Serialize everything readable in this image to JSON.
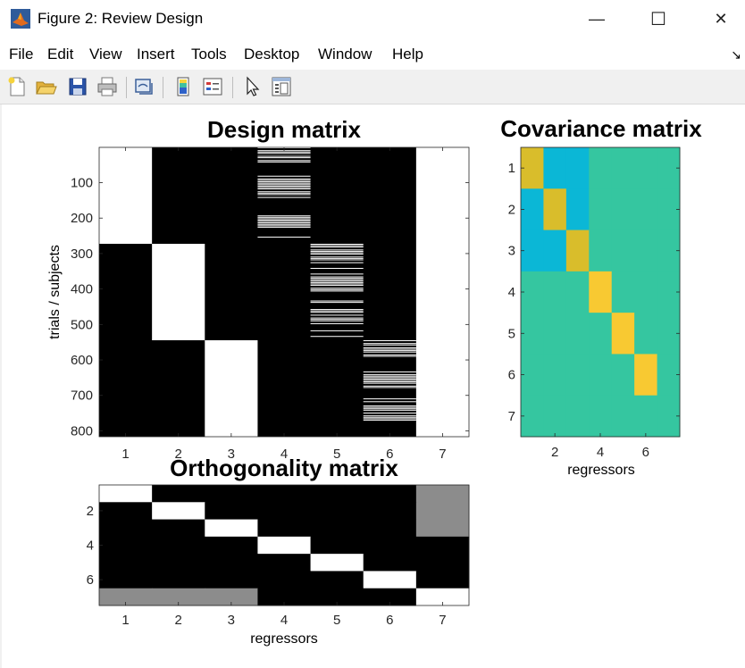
{
  "window": {
    "title": "Figure 2: Review Design",
    "minimize_symbol": "—",
    "maximize_symbol": "☐",
    "close_symbol": "✕",
    "app_icon": "matlab-logo-icon"
  },
  "menu": {
    "items": [
      "File",
      "Edit",
      "View",
      "Insert",
      "Tools",
      "Desktop",
      "Window",
      "Help"
    ],
    "overflow_symbol": "↘"
  },
  "toolbar": {
    "tools": [
      "new-figure-icon",
      "open-file-icon",
      "save-icon",
      "print-icon",
      "link-plot-icon",
      "insert-colorbar-icon",
      "insert-legend-icon",
      "edit-plot-arrow-icon",
      "property-inspector-icon"
    ]
  },
  "colors": {
    "white": "#ffffff",
    "black": "#000000",
    "gray": "#8c8c8c",
    "cov_teal": "#35c6a0",
    "cov_cyan": "#0bb7d6",
    "cov_mustard": "#d9bd2b",
    "cov_yellow": "#f8c932"
  },
  "chart_data": [
    {
      "type": "heatmap",
      "title": "Design matrix",
      "xlabel": "",
      "ylabel": "trials / subjects",
      "xticks": [
        1,
        2,
        3,
        4,
        5,
        6,
        7
      ],
      "yticks": [
        100,
        200,
        300,
        400,
        500,
        600,
        700,
        800
      ],
      "xlim": [
        0.5,
        7.5
      ],
      "ylim": [
        0.5,
        816.5
      ],
      "colormap": "gray",
      "blocks": [
        {
          "column": 1,
          "from": 1,
          "to": 272,
          "value": 1
        },
        {
          "column": 2,
          "from": 273,
          "to": 544,
          "value": 1
        },
        {
          "column": 3,
          "from": 545,
          "to": 816,
          "value": 1
        },
        {
          "column": 7,
          "from": 1,
          "to": 816,
          "value": 1
        }
      ],
      "sparse_columns": [
        {
          "column": 4,
          "from": 1,
          "to": 272,
          "pattern": "binary events"
        },
        {
          "column": 5,
          "from": 273,
          "to": 544,
          "pattern": "binary events"
        },
        {
          "column": 6,
          "from": 545,
          "to": 816,
          "pattern": "binary events"
        }
      ]
    },
    {
      "type": "heatmap",
      "title": "Covariance matrix",
      "xlabel": "regressors",
      "ylabel": "",
      "xticks": [
        2,
        4,
        6
      ],
      "yticks": [
        1,
        2,
        3,
        4,
        5,
        6,
        7
      ],
      "xlim": [
        0.5,
        7.5
      ],
      "ylim": [
        0.5,
        7.5
      ],
      "colormap": "parula",
      "cells": [
        [
          "mustard",
          "cyan",
          "cyan",
          "teal",
          "teal",
          "teal",
          "teal"
        ],
        [
          "cyan",
          "mustard",
          "cyan",
          "teal",
          "teal",
          "teal",
          "teal"
        ],
        [
          "cyan",
          "cyan",
          "mustard",
          "teal",
          "teal",
          "teal",
          "teal"
        ],
        [
          "teal",
          "teal",
          "teal",
          "yellow",
          "teal",
          "teal",
          "teal"
        ],
        [
          "teal",
          "teal",
          "teal",
          "teal",
          "yellow",
          "teal",
          "teal"
        ],
        [
          "teal",
          "teal",
          "teal",
          "teal",
          "teal",
          "yellow",
          "teal"
        ],
        [
          "teal",
          "teal",
          "teal",
          "teal",
          "teal",
          "teal",
          "teal"
        ]
      ]
    },
    {
      "type": "heatmap",
      "title": "Orthogonality matrix",
      "xlabel": "regressors",
      "ylabel": "",
      "xticks": [
        1,
        2,
        3,
        4,
        5,
        6,
        7
      ],
      "yticks": [
        2,
        4,
        6
      ],
      "xlim": [
        0.5,
        7.5
      ],
      "ylim": [
        0.5,
        7.5
      ],
      "colormap": "gray",
      "cells": [
        [
          1,
          0,
          0,
          0,
          0,
          0,
          0.55
        ],
        [
          0,
          1,
          0,
          0,
          0,
          0,
          0.55
        ],
        [
          0,
          0,
          1,
          0,
          0,
          0,
          0.55
        ],
        [
          0,
          0,
          0,
          1,
          0,
          0,
          0
        ],
        [
          0,
          0,
          0,
          0,
          1,
          0,
          0
        ],
        [
          0,
          0,
          0,
          0,
          0,
          1,
          0
        ],
        [
          0.55,
          0.55,
          0.55,
          0,
          0,
          0,
          1
        ]
      ]
    }
  ]
}
